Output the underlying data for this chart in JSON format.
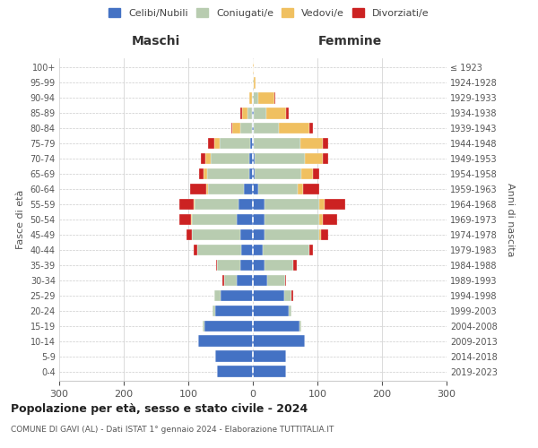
{
  "age_groups": [
    "0-4",
    "5-9",
    "10-14",
    "15-19",
    "20-24",
    "25-29",
    "30-34",
    "35-39",
    "40-44",
    "45-49",
    "50-54",
    "55-59",
    "60-64",
    "65-69",
    "70-74",
    "75-79",
    "80-84",
    "85-89",
    "90-94",
    "95-99",
    "100+"
  ],
  "birth_years": [
    "2019-2023",
    "2014-2018",
    "2009-2013",
    "2004-2008",
    "1999-2003",
    "1994-1998",
    "1989-1993",
    "1984-1988",
    "1979-1983",
    "1974-1978",
    "1969-1973",
    "1964-1968",
    "1959-1963",
    "1954-1958",
    "1949-1953",
    "1944-1948",
    "1939-1943",
    "1934-1938",
    "1929-1933",
    "1924-1928",
    "≤ 1923"
  ],
  "colors": {
    "celibe": "#4472C4",
    "coniugato": "#B8CCB0",
    "vedovo": "#F0C060",
    "divorziato": "#CC2222"
  },
  "maschi": {
    "celibe": [
      55,
      58,
      85,
      75,
      58,
      50,
      25,
      20,
      18,
      20,
      25,
      22,
      14,
      6,
      5,
      4,
      2,
      1,
      0,
      0,
      0
    ],
    "coniugato": [
      0,
      0,
      0,
      3,
      5,
      10,
      20,
      35,
      68,
      75,
      70,
      68,
      55,
      65,
      60,
      48,
      18,
      8,
      2,
      0,
      0
    ],
    "vedovo": [
      0,
      0,
      0,
      0,
      0,
      0,
      0,
      0,
      0,
      0,
      1,
      2,
      3,
      5,
      8,
      8,
      12,
      8,
      3,
      0,
      0
    ],
    "divorziato": [
      0,
      0,
      0,
      0,
      0,
      0,
      2,
      2,
      5,
      8,
      18,
      22,
      25,
      8,
      8,
      10,
      1,
      2,
      0,
      0,
      0
    ]
  },
  "femmine": {
    "nubile": [
      52,
      52,
      80,
      72,
      55,
      48,
      22,
      18,
      15,
      18,
      18,
      18,
      8,
      3,
      3,
      2,
      2,
      1,
      0,
      0,
      0
    ],
    "coniugata": [
      0,
      0,
      0,
      3,
      5,
      12,
      28,
      45,
      72,
      85,
      85,
      85,
      62,
      72,
      78,
      72,
      38,
      20,
      8,
      2,
      0
    ],
    "vedova": [
      0,
      0,
      0,
      0,
      0,
      0,
      0,
      0,
      1,
      2,
      5,
      8,
      8,
      18,
      28,
      35,
      48,
      30,
      25,
      2,
      2
    ],
    "divorziata": [
      0,
      0,
      0,
      0,
      0,
      2,
      2,
      5,
      5,
      12,
      22,
      32,
      25,
      10,
      8,
      8,
      5,
      5,
      2,
      0,
      0
    ]
  },
  "xlim": 300,
  "title_main": "Popolazione per età, sesso e stato civile - 2024",
  "title_sub": "COMUNE DI GAVI (AL) - Dati ISTAT 1° gennaio 2024 - Elaborazione TUTTITALIA.IT",
  "xlabel_left": "Maschi",
  "xlabel_right": "Femmine",
  "ylabel_left": "Fasce di età",
  "ylabel_right": "Anni di nascita",
  "legend_labels": [
    "Celibi/Nubili",
    "Coniugati/e",
    "Vedovi/e",
    "Divorziati/e"
  ],
  "bg_color": "#FFFFFF",
  "grid_color": "#CCCCCC",
  "bar_height": 0.75
}
